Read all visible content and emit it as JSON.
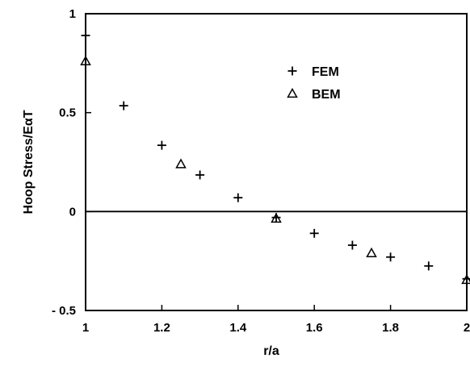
{
  "chart_data": {
    "type": "scatter",
    "xlabel": "r/a",
    "ylabel": "Hoop Stress/EαT",
    "xlim": [
      1,
      2
    ],
    "ylim": [
      -0.5,
      1
    ],
    "xticks": [
      1,
      1.2,
      1.4,
      1.6,
      1.8,
      2
    ],
    "xtick_labels": [
      "1",
      "1.2",
      "1.4",
      "1.6",
      "1.8",
      "2"
    ],
    "yticks": [
      -0.5,
      0,
      0.5,
      1
    ],
    "ytick_labels": [
      "- 0.5",
      "0",
      "0.5",
      "1"
    ],
    "reference_line_y": 0,
    "grid": false,
    "legend_position": "top-right",
    "series": [
      {
        "name": "FEM",
        "marker": "plus",
        "x": [
          1.0,
          1.1,
          1.2,
          1.3,
          1.4,
          1.5,
          1.6,
          1.7,
          1.8,
          1.9,
          2.0
        ],
        "y": [
          0.89,
          0.535,
          0.335,
          0.185,
          0.07,
          -0.03,
          -0.11,
          -0.17,
          -0.23,
          -0.275,
          -0.34
        ]
      },
      {
        "name": "BEM",
        "marker": "triangle",
        "x": [
          1.0,
          1.25,
          1.5,
          1.75,
          2.0
        ],
        "y": [
          0.76,
          0.24,
          -0.035,
          -0.21,
          -0.345
        ]
      }
    ]
  },
  "colors": {
    "ink": "#000000",
    "background": "#ffffff"
  }
}
